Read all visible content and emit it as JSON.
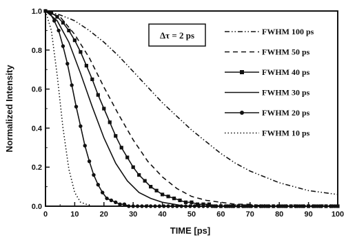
{
  "chart_data": {
    "type": "line",
    "xlabel": "TIME [ps]",
    "ylabel": "Normalized Intensity",
    "xlim": [
      0,
      100
    ],
    "ylim": [
      0,
      1.0
    ],
    "xticks": [
      "0",
      "10",
      "20",
      "30",
      "40",
      "50",
      "60",
      "70",
      "80",
      "90",
      "100"
    ],
    "yticks": [
      "0.0",
      "0.2",
      "0.4",
      "0.6",
      "0.8",
      "1.0"
    ],
    "grid": false,
    "legend_position": "top-right",
    "annotation": "Δτ = 2 ps",
    "series": [
      {
        "name": "FWHM 100 ps",
        "style": "dash-dot-dot",
        "marker": "none",
        "x": [
          0,
          5,
          10,
          15,
          20,
          25,
          30,
          35,
          40,
          45,
          50,
          55,
          60,
          65,
          70,
          75,
          80,
          85,
          90,
          95,
          100
        ],
        "y": [
          1.0,
          0.98,
          0.95,
          0.9,
          0.84,
          0.77,
          0.69,
          0.61,
          0.53,
          0.46,
          0.39,
          0.33,
          0.27,
          0.22,
          0.18,
          0.15,
          0.12,
          0.1,
          0.08,
          0.07,
          0.06
        ]
      },
      {
        "name": "FWHM 50 ps",
        "style": "dashed",
        "marker": "none",
        "x": [
          0,
          5,
          10,
          15,
          20,
          25,
          30,
          35,
          40,
          45,
          50,
          55,
          60,
          65,
          70,
          75,
          80,
          85,
          90,
          95,
          100
        ],
        "y": [
          1.0,
          0.97,
          0.88,
          0.76,
          0.61,
          0.47,
          0.34,
          0.23,
          0.15,
          0.09,
          0.05,
          0.03,
          0.02,
          0.01,
          0.01,
          0.0,
          0.0,
          0.0,
          0.0,
          0.0,
          0.0
        ]
      },
      {
        "name": "FWHM 40 ps",
        "style": "solid",
        "marker": "square",
        "x": [
          0,
          2,
          4,
          6,
          8,
          10,
          12,
          14,
          16,
          18,
          20,
          22,
          24,
          26,
          28,
          30,
          32,
          34,
          36,
          38,
          40,
          42,
          44,
          46,
          48,
          50,
          52,
          54,
          56,
          58,
          60,
          62,
          64,
          66,
          68,
          70,
          72,
          74,
          76,
          78,
          80,
          82,
          84,
          86,
          88,
          90,
          92,
          94,
          96,
          98,
          100
        ],
        "y": [
          1.0,
          0.99,
          0.97,
          0.94,
          0.9,
          0.85,
          0.79,
          0.72,
          0.65,
          0.57,
          0.5,
          0.43,
          0.36,
          0.3,
          0.25,
          0.2,
          0.16,
          0.13,
          0.1,
          0.08,
          0.06,
          0.05,
          0.04,
          0.03,
          0.02,
          0.02,
          0.01,
          0.01,
          0.01,
          0.0,
          0.0,
          0.0,
          0.0,
          0.0,
          0.0,
          0.0,
          0.0,
          0.0,
          0.0,
          0.0,
          0.0,
          0.0,
          0.0,
          0.0,
          0.0,
          0.0,
          0.0,
          0.0,
          0.0,
          0.0,
          0.0
        ]
      },
      {
        "name": "FWHM 30 ps",
        "style": "solid",
        "marker": "none",
        "x": [
          0,
          4,
          8,
          12,
          16,
          20,
          24,
          28,
          32,
          36,
          40,
          44,
          48,
          52,
          56,
          60,
          70,
          80,
          90,
          100
        ],
        "y": [
          1.0,
          0.95,
          0.84,
          0.68,
          0.51,
          0.35,
          0.22,
          0.13,
          0.07,
          0.04,
          0.02,
          0.01,
          0.0,
          0.0,
          0.0,
          0.0,
          0.0,
          0.0,
          0.0,
          0.0
        ]
      },
      {
        "name": "FWHM 20 ps",
        "style": "solid",
        "marker": "circle",
        "x": [
          0,
          1.5,
          3,
          4.5,
          6,
          7.5,
          9,
          10.5,
          12,
          13.5,
          15,
          16.5,
          18,
          19.5,
          21,
          22.5,
          24,
          25.5,
          27,
          28.5,
          30,
          31.5,
          33,
          34.5,
          36,
          37.5,
          39,
          40.5,
          42,
          43.5,
          45,
          46.5,
          48,
          49.5,
          51,
          52.5,
          54,
          55.5,
          57,
          58.5,
          60,
          61.5,
          63,
          64.5,
          66,
          67.5,
          69,
          70.5,
          72,
          73.5,
          75,
          76.5,
          78,
          79.5,
          81,
          82.5,
          84,
          85.5,
          87,
          88.5,
          90,
          91.5,
          93,
          94.5,
          96,
          97.5,
          99
        ],
        "y": [
          1.0,
          0.99,
          0.95,
          0.9,
          0.82,
          0.73,
          0.62,
          0.51,
          0.41,
          0.31,
          0.23,
          0.16,
          0.11,
          0.07,
          0.04,
          0.03,
          0.02,
          0.01,
          0.01,
          0.0,
          0.0,
          0.0,
          0.0,
          0.0,
          0.0,
          0.0,
          0.0,
          0.0,
          0.0,
          0.0,
          0.0,
          0.0,
          0.0,
          0.0,
          0.0,
          0.0,
          0.0,
          0.0,
          0.0,
          0.0,
          0.0,
          0.0,
          0.0,
          0.0,
          0.0,
          0.0,
          0.0,
          0.0,
          0.0,
          0.0,
          0.0,
          0.0,
          0.0,
          0.0,
          0.0,
          0.0,
          0.0,
          0.0,
          0.0,
          0.0,
          0.0,
          0.0,
          0.0,
          0.0,
          0.0,
          0.0,
          0.0
        ]
      },
      {
        "name": "FWHM 10 ps",
        "style": "dotted",
        "marker": "none",
        "x": [
          0,
          2,
          4,
          6,
          8,
          10,
          12,
          14,
          16,
          18,
          20,
          25,
          30,
          40,
          50,
          60,
          70,
          80,
          90,
          100
        ],
        "y": [
          1.0,
          0.9,
          0.67,
          0.4,
          0.19,
          0.07,
          0.02,
          0.01,
          0.0,
          0.0,
          0.0,
          0.0,
          0.0,
          0.0,
          0.0,
          0.0,
          0.0,
          0.0,
          0.0,
          0.0
        ]
      }
    ]
  }
}
